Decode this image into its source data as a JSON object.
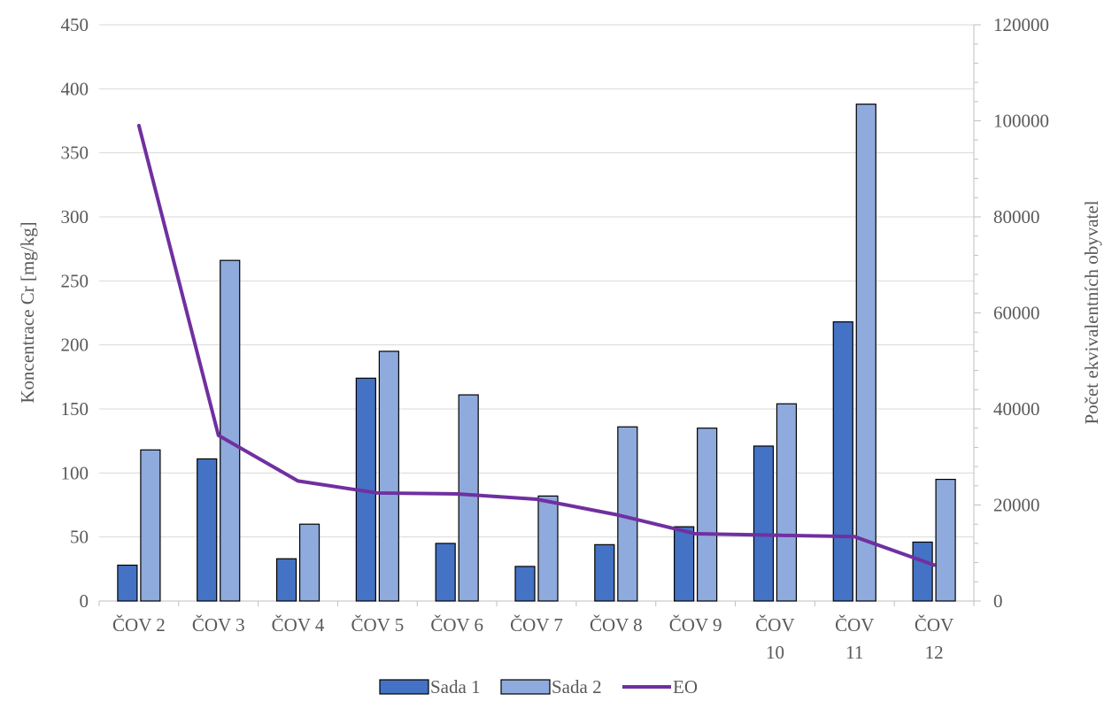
{
  "chart_data": {
    "type": "bar",
    "categories": [
      "ČOV 2",
      "ČOV 3",
      "ČOV 4",
      "ČOV 5",
      "ČOV 6",
      "ČOV 7",
      "ČOV 8",
      "ČOV 9",
      "ČOV 10",
      "ČOV 11",
      "ČOV 12"
    ],
    "series": [
      {
        "name": "Sada 1",
        "type": "bar",
        "axis": "left",
        "color": "#4472C4",
        "values": [
          28,
          111,
          33,
          174,
          45,
          27,
          44,
          58,
          121,
          218,
          46
        ]
      },
      {
        "name": "Sada 2",
        "type": "bar",
        "axis": "left",
        "color": "#8FAADC",
        "values": [
          118,
          266,
          60,
          195,
          161,
          82,
          136,
          135,
          154,
          388,
          95
        ]
      },
      {
        "name": "EO",
        "type": "line",
        "axis": "right",
        "color": "#7030A0",
        "values": [
          99000,
          34500,
          25000,
          22500,
          22300,
          21200,
          18000,
          14000,
          13700,
          13400,
          7500
        ]
      }
    ],
    "ylabel": "Koncentrace Cr [mg/kg]",
    "ylabel_right": "Počet ekvivalentních obyvatel",
    "ylim": [
      0,
      450
    ],
    "ylim_right": [
      0,
      120000
    ],
    "yticks": [
      "0",
      "50",
      "100",
      "150",
      "200",
      "250",
      "300",
      "350",
      "400",
      "450"
    ],
    "yticks_right": [
      "0",
      "20000",
      "40000",
      "60000",
      "80000",
      "100000",
      "120000"
    ],
    "grid": true,
    "legend_position": "bottom"
  }
}
